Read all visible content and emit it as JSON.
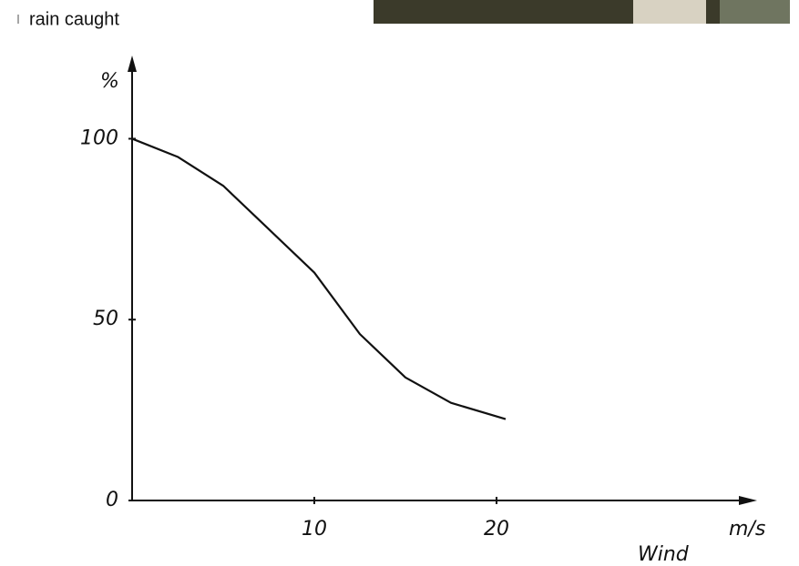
{
  "chart_data": {
    "type": "line",
    "title": "rain caught",
    "y_label": "%",
    "x_unit": "m/s",
    "x_label": "Wind",
    "x": [
      0,
      2.5,
      5,
      7.5,
      10,
      12.5,
      15,
      17.5,
      20.5
    ],
    "values": [
      100,
      95,
      87,
      75,
      63,
      46,
      34,
      27,
      22.5
    ],
    "color": "#111111",
    "xlim": [
      0,
      34
    ],
    "ylim": [
      0,
      122
    ],
    "xticks": [
      10,
      20
    ],
    "yticks": [
      0,
      50,
      100
    ]
  }
}
